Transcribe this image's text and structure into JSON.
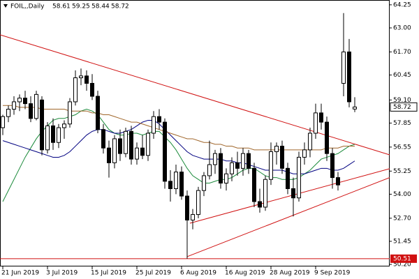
{
  "chart_data": {
    "type": "candlestick",
    "title": "FOIL,,Daily",
    "categories": [
      "21 Jun 2019",
      null,
      null,
      null,
      null,
      null,
      null,
      null,
      "3 Jul 2019",
      null,
      null,
      null,
      null,
      null,
      null,
      null,
      "15 Jul 2019",
      null,
      null,
      null,
      null,
      null,
      null,
      null,
      "25 Jul 2019",
      null,
      null,
      null,
      null,
      null,
      null,
      null,
      "6 Aug 2019",
      null,
      null,
      null,
      null,
      null,
      null,
      null,
      "16 Aug 2019",
      null,
      null,
      null,
      null,
      null,
      null,
      null,
      "28 Aug 2019",
      null,
      null,
      null,
      null,
      null,
      null,
      null,
      "9 Sep 2019",
      null,
      null,
      null,
      null,
      null,
      null,
      null
    ],
    "open": [
      57.6,
      58.2,
      58.6,
      59.0,
      59.2,
      58.9,
      58.1,
      59.1,
      56.4,
      57.7,
      56.8,
      57.6,
      57.8,
      59.0,
      60.3,
      60.4,
      60.0,
      59.3,
      57.5,
      56.5,
      55.7,
      57.0,
      56.2,
      57.4,
      55.9,
      56.5,
      56.1,
      57.3,
      58.2,
      57.9,
      54.7,
      54.3,
      55.2,
      53.9,
      52.6,
      52.9,
      54.2,
      55.0,
      55.6,
      56.2,
      54.6,
      55.1,
      55.7,
      55.4,
      56.2,
      55.4,
      53.6,
      53.3,
      54.8,
      56.3,
      56.6,
      55.4,
      54.3,
      53.8,
      56.0,
      56.4,
      57.3,
      58.4,
      57.9,
      56.2,
      54.9,
      60.0,
      61.7,
      58.61
    ],
    "high": [
      58.3,
      58.8,
      59.3,
      59.4,
      59.6,
      59.3,
      59.6,
      59.3,
      57.9,
      58.1,
      57.8,
      58.0,
      59.2,
      60.7,
      60.8,
      60.7,
      60.5,
      59.6,
      57.8,
      56.9,
      57.2,
      57.5,
      57.6,
      57.7,
      56.8,
      57.2,
      57.5,
      58.5,
      58.6,
      58.1,
      55.3,
      55.6,
      55.5,
      54.2,
      53.2,
      54.4,
      55.2,
      56.9,
      56.4,
      56.5,
      55.4,
      56.0,
      56.3,
      56.5,
      56.4,
      55.7,
      54.3,
      55.0,
      56.8,
      56.8,
      56.9,
      55.7,
      54.9,
      56.3,
      56.8,
      57.6,
      58.9,
      58.9,
      58.2,
      56.5,
      55.2,
      63.8,
      62.4,
      59.25
    ],
    "low": [
      57.2,
      57.9,
      58.3,
      58.5,
      58.6,
      57.9,
      58.0,
      56.1,
      56.2,
      56.4,
      56.5,
      57.0,
      57.6,
      58.8,
      59.9,
      59.6,
      59.1,
      57.3,
      56.2,
      54.9,
      55.4,
      55.8,
      56.0,
      55.6,
      55.6,
      55.9,
      55.8,
      57.0,
      57.5,
      54.3,
      53.6,
      54.0,
      53.7,
      50.51,
      52.1,
      52.7,
      53.9,
      54.8,
      55.1,
      54.3,
      54.2,
      54.7,
      55.0,
      55.0,
      55.1,
      53.3,
      53.0,
      53.1,
      54.5,
      55.6,
      55.1,
      54.0,
      52.8,
      53.6,
      55.6,
      56.0,
      57.0,
      57.5,
      55.8,
      54.3,
      54.2,
      59.3,
      58.7,
      58.44
    ],
    "close": [
      58.2,
      58.6,
      59.0,
      59.2,
      58.9,
      58.1,
      59.4,
      56.4,
      57.7,
      56.8,
      57.6,
      57.8,
      59.0,
      60.3,
      60.4,
      60.0,
      59.3,
      57.5,
      56.5,
      55.7,
      57.0,
      56.2,
      57.4,
      55.9,
      56.5,
      56.1,
      57.3,
      58.2,
      57.9,
      54.7,
      54.3,
      55.2,
      53.9,
      52.6,
      52.9,
      54.2,
      55.0,
      55.6,
      56.2,
      54.6,
      55.1,
      55.7,
      55.4,
      56.2,
      55.4,
      53.6,
      53.3,
      54.8,
      56.3,
      56.6,
      55.4,
      54.3,
      53.8,
      56.0,
      56.4,
      57.3,
      58.4,
      57.9,
      56.2,
      54.9,
      54.5,
      61.7,
      59.0,
      58.72
    ],
    "series": [
      {
        "color": "#1a8a3a",
        "values": [
          53.6,
          54.2,
          54.8,
          55.4,
          56.0,
          56.5,
          57.0,
          57.4,
          57.7,
          58.0,
          58.1,
          58.1,
          58.2,
          58.3,
          58.5,
          58.6,
          58.5,
          58.3,
          57.9,
          57.5,
          57.3,
          57.2,
          57.2,
          57.3,
          57.3,
          57.2,
          57.3,
          57.4,
          57.4,
          57.1,
          56.8,
          56.4,
          55.9,
          55.4,
          55.0,
          54.8,
          54.6,
          54.6,
          54.7,
          54.8,
          54.8,
          54.9,
          55.1,
          55.3,
          55.4,
          55.4,
          55.2,
          55.0,
          54.9,
          54.9,
          54.8,
          54.8,
          54.8,
          54.9,
          55.1,
          55.3,
          55.6,
          55.9,
          56.0,
          56.1,
          56.2,
          56.4,
          56.6,
          56.7
        ]
      },
      {
        "color": "#000080",
        "values": [
          56.9,
          56.8,
          56.7,
          56.6,
          56.5,
          56.4,
          56.3,
          56.2,
          56.1,
          56.0,
          56.0,
          56.1,
          56.3,
          56.6,
          56.9,
          57.2,
          57.4,
          57.5,
          57.5,
          57.4,
          57.3,
          57.3,
          57.4,
          57.5,
          57.7,
          57.9,
          58.0,
          58.0,
          57.8,
          57.5,
          57.2,
          56.9,
          56.6,
          56.3,
          56.1,
          56.0,
          55.9,
          55.9,
          55.9,
          55.9,
          55.8,
          55.8,
          55.7,
          55.7,
          55.6,
          55.5,
          55.4,
          55.3,
          55.3,
          55.3,
          55.3,
          55.2,
          55.1,
          55.1,
          55.1,
          55.2,
          55.3,
          55.4,
          55.4,
          55.3,
          55.3,
          55.4,
          55.6,
          55.8
        ]
      },
      {
        "color": "#a0662a",
        "values": [
          58.8,
          58.8,
          58.8,
          58.7,
          58.7,
          58.7,
          58.7,
          58.6,
          58.6,
          58.6,
          58.6,
          58.6,
          58.5,
          58.5,
          58.5,
          58.5,
          58.4,
          58.4,
          58.3,
          58.3,
          58.2,
          58.1,
          58.0,
          57.9,
          57.9,
          57.8,
          57.7,
          57.6,
          57.5,
          57.4,
          57.3,
          57.2,
          57.1,
          57.0,
          57.0,
          56.9,
          56.8,
          56.8,
          56.7,
          56.7,
          56.6,
          56.6,
          56.5,
          56.5,
          56.5,
          56.4,
          56.4,
          56.4,
          56.4,
          56.4,
          56.4,
          56.4,
          56.4,
          56.4,
          56.4,
          56.4,
          56.4,
          56.4,
          56.5,
          56.5,
          56.5,
          56.6,
          56.6,
          56.6
        ]
      }
    ],
    "trendlines": [
      {
        "color": "#d01010",
        "x": [
          -0.5,
          69.25
        ],
        "y": [
          62.63,
          56.13
        ]
      },
      {
        "color": "#d01010",
        "x": [
          33.5,
          69.25
        ],
        "y": [
          52.43,
          55.38
        ]
      },
      {
        "color": "#d01010",
        "x": [
          33,
          69.25
        ],
        "y": [
          50.62,
          54.9
        ]
      }
    ],
    "hline": {
      "value": 50.51,
      "color": "#d01010"
    },
    "ylim": [
      50.09,
      64.51
    ],
    "yticks": [
      64.25,
      {
        "value": 63,
        "label": "63.00"
      },
      {
        "value": 61.7,
        "label": "61.70"
      },
      60.45,
      {
        "value": 59.1,
        "label": "59.10"
      },
      57.85,
      56.55,
      55.25,
      {
        "value": 54,
        "label": "54.00"
      },
      {
        "value": 52.7,
        "label": "52.70"
      },
      51.45,
      {
        "value": 50.2,
        "label": "50.20"
      }
    ]
  }
}
